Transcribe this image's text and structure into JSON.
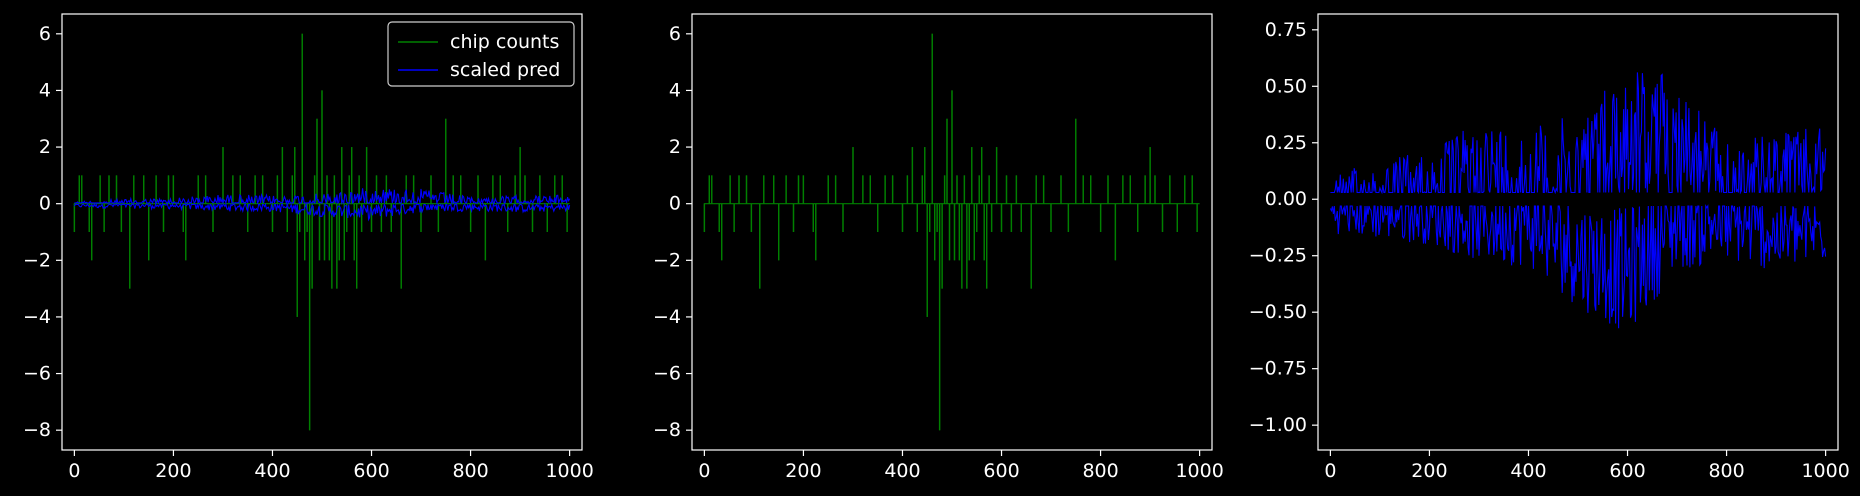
{
  "figure": {
    "background": "#000000",
    "foreground": "#ffffff"
  },
  "chart_data": [
    {
      "type": "line",
      "title": "",
      "xlabel": "",
      "ylabel": "",
      "xlim": [
        -25,
        1025
      ],
      "ylim": [
        -8.7,
        6.7
      ],
      "xticks": [
        0,
        200,
        400,
        600,
        800,
        1000
      ],
      "yticks": [
        -8,
        -6,
        -4,
        -2,
        0,
        2,
        4,
        6
      ],
      "ytick_format": "int",
      "grid": false,
      "legend": {
        "placement": "top-right",
        "entries": [
          "chip counts",
          "scaled pred"
        ]
      },
      "series": [
        {
          "name": "chip counts",
          "color": "#008000",
          "kind": "counts",
          "spikes": [
            [
              0,
              -1
            ],
            [
              10,
              1
            ],
            [
              15,
              1
            ],
            [
              30,
              -1
            ],
            [
              35,
              -2
            ],
            [
              52,
              1
            ],
            [
              60,
              -1
            ],
            [
              70,
              1
            ],
            [
              85,
              1
            ],
            [
              95,
              -1
            ],
            [
              112,
              -3
            ],
            [
              120,
              1
            ],
            [
              140,
              1
            ],
            [
              150,
              -2
            ],
            [
              165,
              1
            ],
            [
              180,
              -1
            ],
            [
              190,
              1
            ],
            [
              200,
              1
            ],
            [
              220,
              -1
            ],
            [
              225,
              -2
            ],
            [
              250,
              1
            ],
            [
              265,
              1
            ],
            [
              280,
              -1
            ],
            [
              300,
              2
            ],
            [
              320,
              1
            ],
            [
              335,
              1
            ],
            [
              350,
              -1
            ],
            [
              365,
              1
            ],
            [
              380,
              1
            ],
            [
              400,
              -1
            ],
            [
              410,
              1
            ],
            [
              420,
              2
            ],
            [
              430,
              -1
            ],
            [
              440,
              1
            ],
            [
              445,
              2
            ],
            [
              450,
              -4
            ],
            [
              455,
              -1
            ],
            [
              460,
              6
            ],
            [
              465,
              -2
            ],
            [
              470,
              -1
            ],
            [
              475,
              -8
            ],
            [
              480,
              -3
            ],
            [
              485,
              1
            ],
            [
              490,
              3
            ],
            [
              495,
              -2
            ],
            [
              500,
              4
            ],
            [
              505,
              -2
            ],
            [
              510,
              1
            ],
            [
              515,
              -2
            ],
            [
              520,
              -3
            ],
            [
              525,
              1
            ],
            [
              530,
              -3
            ],
            [
              535,
              -2
            ],
            [
              540,
              2
            ],
            [
              545,
              -2
            ],
            [
              550,
              -1
            ],
            [
              555,
              1
            ],
            [
              560,
              2
            ],
            [
              565,
              -2
            ],
            [
              570,
              -3
            ],
            [
              575,
              1
            ],
            [
              580,
              -1
            ],
            [
              590,
              2
            ],
            [
              600,
              -1
            ],
            [
              610,
              1
            ],
            [
              620,
              -1
            ],
            [
              630,
              1
            ],
            [
              640,
              -1
            ],
            [
              660,
              -3
            ],
            [
              670,
              1
            ],
            [
              685,
              1
            ],
            [
              700,
              -1
            ],
            [
              720,
              1
            ],
            [
              735,
              -1
            ],
            [
              750,
              3
            ],
            [
              765,
              1
            ],
            [
              780,
              1
            ],
            [
              800,
              -1
            ],
            [
              815,
              1
            ],
            [
              830,
              -2
            ],
            [
              845,
              1
            ],
            [
              860,
              1
            ],
            [
              875,
              -1
            ],
            [
              890,
              1
            ],
            [
              900,
              2
            ],
            [
              910,
              1
            ],
            [
              925,
              -1
            ],
            [
              940,
              1
            ],
            [
              955,
              -1
            ],
            [
              970,
              1
            ],
            [
              985,
              1
            ],
            [
              995,
              -1
            ]
          ]
        },
        {
          "name": "scaled pred",
          "color": "#0000ff",
          "kind": "band",
          "upper": [
            0.1,
            0.18,
            0.22,
            0.35,
            0.32,
            0.38,
            0.62,
            0.55,
            0.25,
            0.3,
            0.32
          ],
          "lower": [
            -0.15,
            -0.18,
            -0.2,
            -0.28,
            -0.3,
            -0.48,
            -0.6,
            -0.32,
            -0.28,
            -0.32,
            -0.28
          ],
          "variability": [
            0.12,
            0.16,
            0.18,
            0.22,
            0.25,
            0.3,
            0.35,
            0.3,
            0.22,
            0.2,
            0.18
          ],
          "y_scale": 0.95
        }
      ]
    },
    {
      "type": "line",
      "title": "",
      "xlabel": "",
      "ylabel": "",
      "xlim": [
        -25,
        1025
      ],
      "ylim": [
        -8.7,
        6.7
      ],
      "xticks": [
        0,
        200,
        400,
        600,
        800,
        1000
      ],
      "yticks": [
        -8,
        -6,
        -4,
        -2,
        0,
        2,
        4,
        6
      ],
      "ytick_format": "int",
      "grid": false,
      "series": [
        {
          "color": "#008000",
          "kind": "counts",
          "spikes": [
            [
              0,
              -1
            ],
            [
              10,
              1
            ],
            [
              15,
              1
            ],
            [
              30,
              -1
            ],
            [
              35,
              -2
            ],
            [
              52,
              1
            ],
            [
              60,
              -1
            ],
            [
              70,
              1
            ],
            [
              85,
              1
            ],
            [
              95,
              -1
            ],
            [
              112,
              -3
            ],
            [
              120,
              1
            ],
            [
              140,
              1
            ],
            [
              150,
              -2
            ],
            [
              165,
              1
            ],
            [
              180,
              -1
            ],
            [
              190,
              1
            ],
            [
              200,
              1
            ],
            [
              220,
              -1
            ],
            [
              225,
              -2
            ],
            [
              250,
              1
            ],
            [
              265,
              1
            ],
            [
              280,
              -1
            ],
            [
              300,
              2
            ],
            [
              320,
              1
            ],
            [
              335,
              1
            ],
            [
              350,
              -1
            ],
            [
              365,
              1
            ],
            [
              380,
              1
            ],
            [
              400,
              -1
            ],
            [
              410,
              1
            ],
            [
              420,
              2
            ],
            [
              430,
              -1
            ],
            [
              440,
              1
            ],
            [
              445,
              2
            ],
            [
              450,
              -4
            ],
            [
              455,
              -1
            ],
            [
              460,
              6
            ],
            [
              465,
              -2
            ],
            [
              470,
              -1
            ],
            [
              475,
              -8
            ],
            [
              480,
              -3
            ],
            [
              485,
              1
            ],
            [
              490,
              3
            ],
            [
              495,
              -2
            ],
            [
              500,
              4
            ],
            [
              505,
              -2
            ],
            [
              510,
              1
            ],
            [
              515,
              -2
            ],
            [
              520,
              -3
            ],
            [
              525,
              1
            ],
            [
              530,
              -3
            ],
            [
              535,
              -2
            ],
            [
              540,
              2
            ],
            [
              545,
              -2
            ],
            [
              550,
              -1
            ],
            [
              555,
              1
            ],
            [
              560,
              2
            ],
            [
              565,
              -2
            ],
            [
              570,
              -3
            ],
            [
              575,
              1
            ],
            [
              580,
              -1
            ],
            [
              590,
              2
            ],
            [
              600,
              -1
            ],
            [
              610,
              1
            ],
            [
              620,
              -1
            ],
            [
              630,
              1
            ],
            [
              640,
              -1
            ],
            [
              660,
              -3
            ],
            [
              670,
              1
            ],
            [
              685,
              1
            ],
            [
              700,
              -1
            ],
            [
              720,
              1
            ],
            [
              735,
              -1
            ],
            [
              750,
              3
            ],
            [
              765,
              1
            ],
            [
              780,
              1
            ],
            [
              800,
              -1
            ],
            [
              815,
              1
            ],
            [
              830,
              -2
            ],
            [
              845,
              1
            ],
            [
              860,
              1
            ],
            [
              875,
              -1
            ],
            [
              890,
              1
            ],
            [
              900,
              2
            ],
            [
              910,
              1
            ],
            [
              925,
              -1
            ],
            [
              940,
              1
            ],
            [
              955,
              -1
            ],
            [
              970,
              1
            ],
            [
              985,
              1
            ],
            [
              995,
              -1
            ]
          ]
        }
      ]
    },
    {
      "type": "line",
      "title": "",
      "xlabel": "",
      "ylabel": "",
      "xlim": [
        -25,
        1025
      ],
      "ylim": [
        -1.11,
        0.82
      ],
      "xticks": [
        0,
        200,
        400,
        600,
        800,
        1000
      ],
      "yticks": [
        -1.0,
        -0.75,
        -0.5,
        -0.25,
        0.0,
        0.25,
        0.5,
        0.75
      ],
      "ytick_format": "2dp",
      "grid": false,
      "series": [
        {
          "color": "#0000ff",
          "kind": "band",
          "upper": [
            0.1,
            0.18,
            0.22,
            0.35,
            0.32,
            0.38,
            0.62,
            0.55,
            0.25,
            0.3,
            0.32
          ],
          "lower": [
            -0.15,
            -0.18,
            -0.2,
            -0.28,
            -0.3,
            -0.48,
            -0.6,
            -0.32,
            -0.28,
            -0.32,
            -0.28
          ],
          "variability": [
            0.12,
            0.16,
            0.18,
            0.22,
            0.25,
            0.3,
            0.35,
            0.3,
            0.22,
            0.2,
            0.18
          ],
          "y_scale": 1.0
        }
      ]
    }
  ]
}
